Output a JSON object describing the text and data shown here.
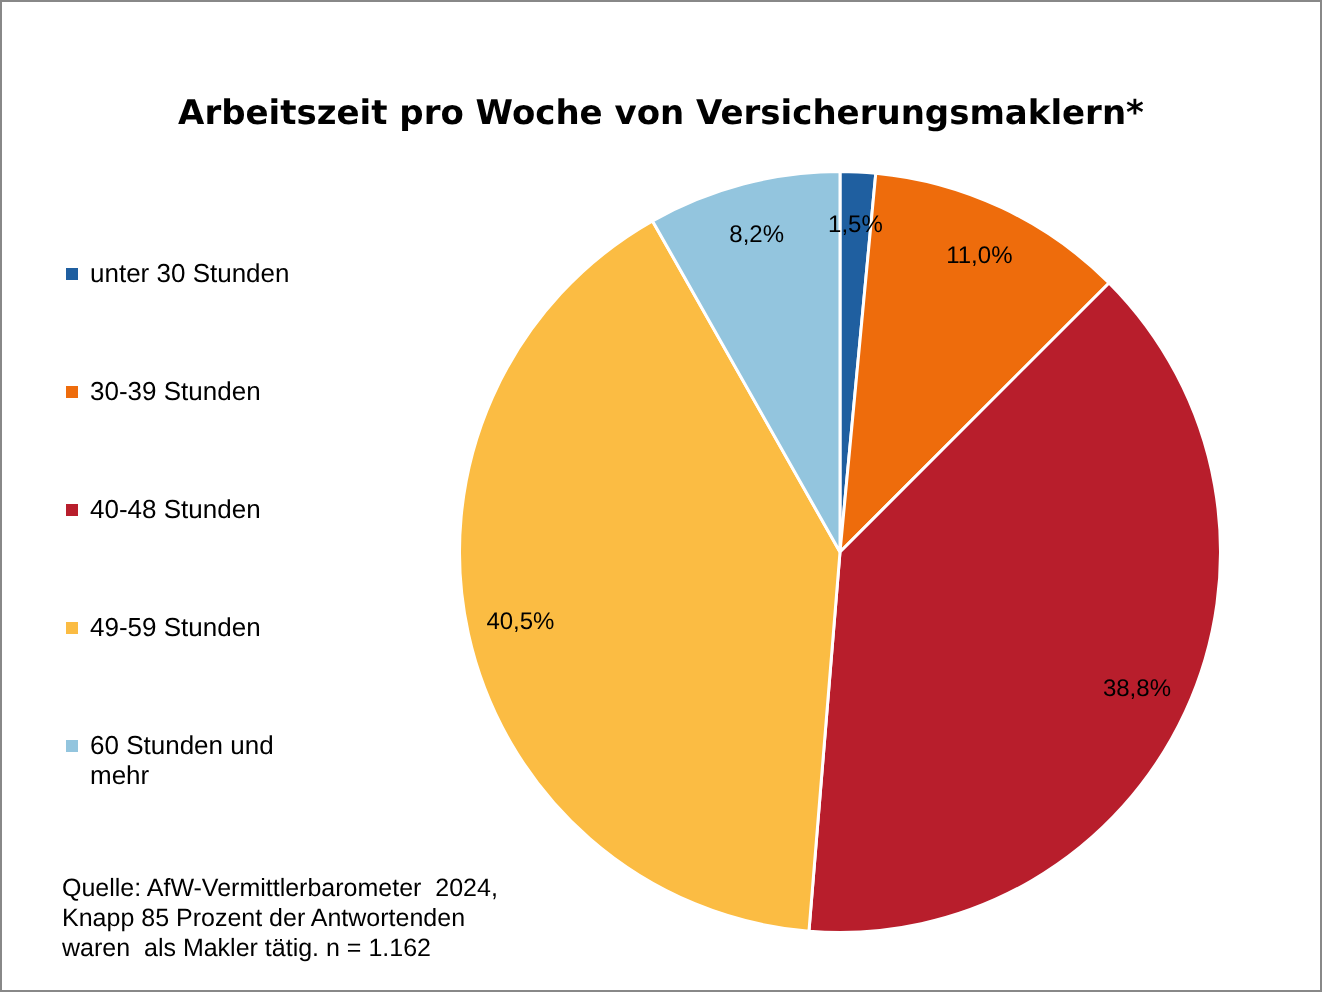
{
  "chart_data": {
    "type": "pie",
    "title": "Arbeitszeit pro Woche von Versicherungsmaklern*",
    "categories": [
      "unter 30 Stunden",
      "30-39 Stunden",
      "40-48 Stunden",
      "49-59 Stunden",
      "60 Stunden und mehr"
    ],
    "values": [
      1.5,
      11.0,
      38.8,
      40.5,
      8.2
    ],
    "colors": [
      "#1f5fa0",
      "#ee6c0c",
      "#b81e2c",
      "#fbbc43",
      "#93c5de"
    ],
    "value_labels": [
      "1,5%",
      "11,0%",
      "38,8%",
      "40,5%",
      "8,2%"
    ],
    "legend": "left",
    "annotations": [
      "Quelle: AfW-Vermittlerbarometer  2024,",
      "Knapp 85 Prozent der Antwortenden",
      "waren  als Makler tätig. n = 1.162"
    ]
  }
}
